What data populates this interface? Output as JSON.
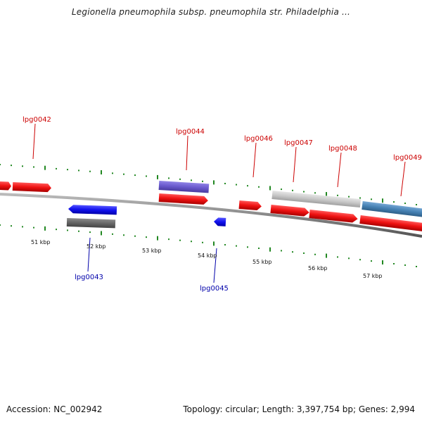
{
  "title": "Legionella pneumophila subsp. pneumophila str. Philadelphia ...",
  "footer": {
    "accession": "Accession: NC_002942",
    "summary": "Topology: circular; Length: 3,397,754 bp; Genes: 2,994"
  },
  "colors": {
    "forward_cds": "#ee1111",
    "reverse_cds": "#1111ee",
    "backbone": "#888888",
    "ticks": "#228822",
    "label_forward": "#cc0000",
    "label_reverse": "#0000aa",
    "feature_purple": "#6a5acd",
    "feature_lightgray": "#c8c8c8",
    "feature_steelblue": "#4682b4",
    "feature_darkgray": "#666666"
  },
  "axis_labels": [
    "51 kbp",
    "52 kbp",
    "53 kbp",
    "54 kbp",
    "55 kbp",
    "56 kbp",
    "57 kbp"
  ],
  "gene_labels": {
    "forward": [
      "lpg0042",
      "lpg0044",
      "lpg0046",
      "lpg0047",
      "lpg0048",
      "lpg0049"
    ],
    "reverse": [
      "lpg0043",
      "lpg0045"
    ]
  }
}
